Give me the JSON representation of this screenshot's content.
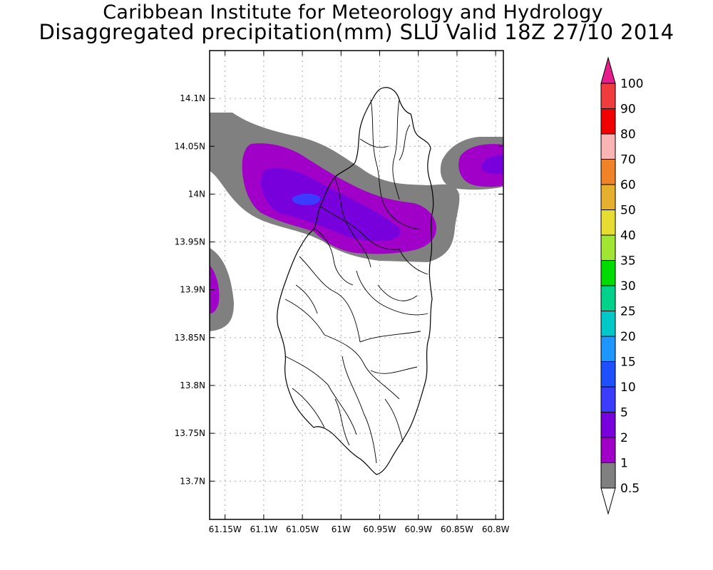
{
  "title": {
    "line1": "Caribbean Institute for Meteorology and Hydrology",
    "line2": "Disaggregated precipitation(mm) SLU Valid 18Z 27/10 2014"
  },
  "map": {
    "lon_range": [
      -61.17,
      -60.79
    ],
    "lat_range": [
      13.66,
      14.15
    ],
    "lat_ticks": [
      {
        "value": 14.1,
        "label": "14.1N"
      },
      {
        "value": 14.05,
        "label": "14.05N"
      },
      {
        "value": 14.0,
        "label": "14N"
      },
      {
        "value": 13.95,
        "label": "13.95N"
      },
      {
        "value": 13.9,
        "label": "13.9N"
      },
      {
        "value": 13.85,
        "label": "13.85N"
      },
      {
        "value": 13.8,
        "label": "13.8N"
      },
      {
        "value": 13.75,
        "label": "13.75N"
      },
      {
        "value": 13.7,
        "label": "13.7N"
      }
    ],
    "lon_ticks": [
      {
        "value": -61.15,
        "label": "61.15W"
      },
      {
        "value": -61.1,
        "label": "61.1W"
      },
      {
        "value": -61.05,
        "label": "61.05W"
      },
      {
        "value": -61.0,
        "label": "61W"
      },
      {
        "value": -60.95,
        "label": "60.95W"
      },
      {
        "value": -60.9,
        "label": "60.9W"
      },
      {
        "value": -60.85,
        "label": "60.85W"
      },
      {
        "value": -60.8,
        "label": "60.8W"
      }
    ],
    "grid": true,
    "grid_style": "dotted"
  },
  "colorbar": {
    "levels": [
      "0.5",
      "1",
      "2",
      "5",
      "10",
      "15",
      "20",
      "25",
      "30",
      "35",
      "40",
      "50",
      "60",
      "70",
      "80",
      "90",
      "100"
    ],
    "colors": [
      "#ffffff",
      "#808080",
      "#a000c8",
      "#7800dc",
      "#3c3cff",
      "#1e50ff",
      "#1e96ff",
      "#00c8c8",
      "#00d28c",
      "#00dc00",
      "#a0e632",
      "#e6dc32",
      "#e6af2d",
      "#f08228",
      "#fab4b4",
      "#f00000",
      "#f03c3c",
      "#e61e8c"
    ]
  },
  "legend_colors": {
    "gray": "#808080",
    "purple": "#a000c8",
    "violet": "#7800dc",
    "blue": "#3c3cff"
  }
}
